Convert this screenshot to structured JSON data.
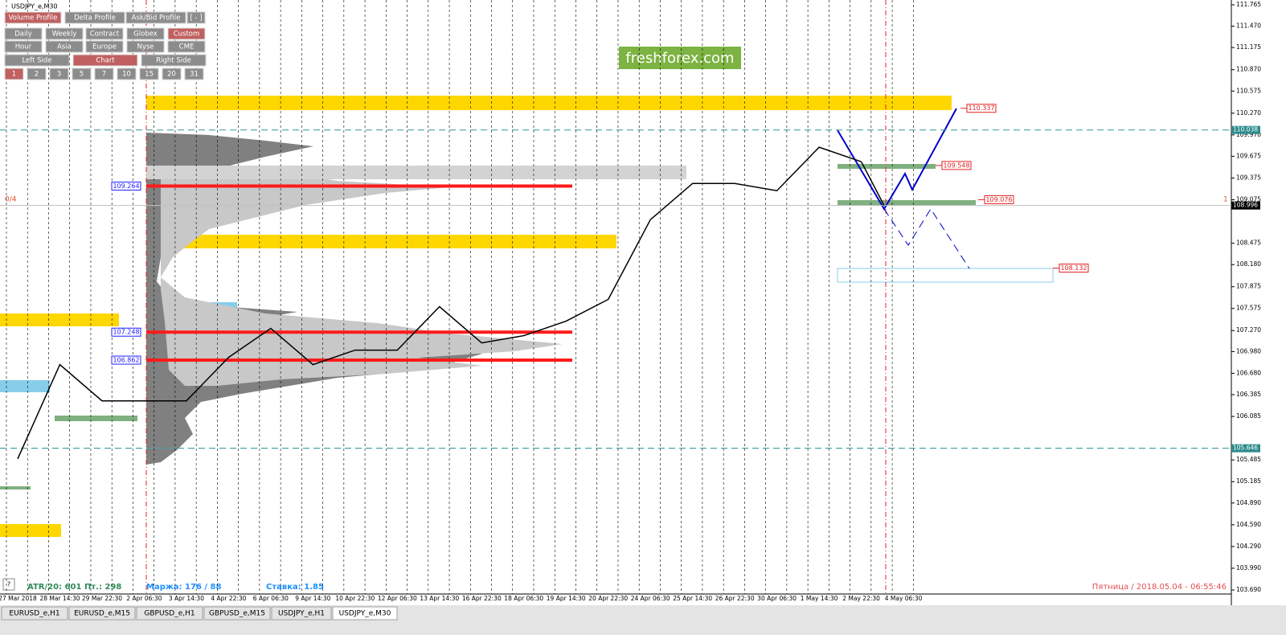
{
  "window_title": "USDJPY_e,M30",
  "toolbar": {
    "row1": [
      "Volume Profile",
      "Delta Profile",
      "Ask/Bid Profile",
      "[ - ]"
    ],
    "row2": [
      "Daily",
      "Weekly",
      "Contract",
      "Globex",
      "Custom"
    ],
    "row3": [
      "Hour",
      "Asia",
      "Europe",
      "Nyse",
      "CME"
    ],
    "row4": [
      "Left Side",
      "Chart",
      "Right Side"
    ],
    "row5": [
      "1",
      "2",
      "3",
      "5",
      "7",
      "10",
      "15",
      "20",
      "31"
    ]
  },
  "logo": "freshforex.com",
  "price_axis": {
    "ylim": [
      103.69,
      111.765
    ],
    "ticks": [
      111.765,
      {
        "value": 111.47,
        "label": "111.470"
      },
      111.175,
      {
        "value": 110.87,
        "label": "110.870"
      },
      110.575,
      {
        "value": 110.27,
        "label": "110.270"
      },
      {
        "value": 109.97,
        "label": "109.970"
      },
      109.675,
      109.375,
      109.075,
      108.475,
      {
        "value": 108.18,
        "label": "108.180"
      },
      107.875,
      107.575,
      {
        "value": 107.27,
        "label": "107.270"
      },
      {
        "value": 106.98,
        "label": "106.980"
      },
      {
        "value": 106.68,
        "label": "106.680"
      },
      106.385,
      106.085,
      105.485,
      105.185,
      {
        "value": 104.89,
        "label": "104.890"
      },
      {
        "value": 104.59,
        "label": "104.590"
      },
      {
        "value": 104.29,
        "label": "104.290"
      },
      {
        "value": 103.99,
        "label": "103.990"
      },
      {
        "value": 103.69,
        "label": "103.690"
      }
    ],
    "levels": [
      110.038,
      105.646
    ],
    "current_price": 108.996
  },
  "left_levels": [
    109.264,
    107.248,
    106.862
  ],
  "right_levels": [
    110.337,
    109.548,
    109.076,
    108.132
  ],
  "time_labels": [
    "27 Mar 2018",
    "28 Mar 14:30",
    "29 Mar 22:30",
    "2 Apr 06:30",
    "3 Apr 14:30",
    "4 Apr 22:30",
    "6 Apr 06:30",
    "9 Apr 14:30",
    "10 Apr 22:30",
    "12 Apr 06:30",
    "13 Apr 14:30",
    "16 Apr 22:30",
    "18 Apr 06:30",
    "19 Apr 14:30",
    "20 Apr 22:30",
    "24 Apr 06:30",
    "25 Apr 14:30",
    "26 Apr 22:30",
    "30 Apr 06:30",
    "1 May 14:30",
    "2 May 22:30",
    "4 May 06:30"
  ],
  "price_path": [
    105.5,
    106.8,
    106.3,
    106.3,
    106.3,
    106.9,
    107.3,
    106.8,
    107.0,
    107.0,
    107.6,
    107.1,
    107.2,
    107.4,
    107.7,
    108.8,
    109.3,
    109.3,
    109.2,
    109.8,
    109.6
  ],
  "left_counter": "0/4",
  "right_counter": "1",
  "status": {
    "atr": "ATR/20: 601",
    "friday_range": "Пт.: 298",
    "margin": "Маржа: 176 / 88",
    "rate": "Ставка: 1.85",
    "datetime": "Пятница / 2018.05.04 - 06:55:46"
  },
  "help_button": "?",
  "tabs": [
    "EURUSD_e,H1",
    "EURUSD_e,M15",
    "GBPUSD_e,H1",
    "GBPUSD_e,M15",
    "USDJPY_e,H1",
    "USDJPY_e,M30"
  ]
}
